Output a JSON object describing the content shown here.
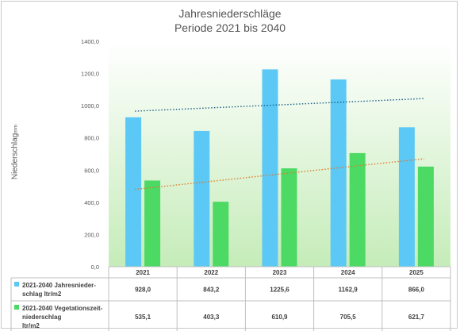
{
  "chart_data": {
    "type": "bar",
    "title": "Jahresniederschläge",
    "subtitle": "Periode 2021 bis 2040",
    "ylabel": "Niederschlag",
    "ylabel_unit": "mm",
    "ylim": [
      0,
      1400
    ],
    "yticks": [
      "0,0",
      "200,0",
      "400,0",
      "600,0",
      "800,0",
      "1000,0",
      "1200,0",
      "1400,0"
    ],
    "categories": [
      "2021",
      "2022",
      "2023",
      "2024",
      "2025"
    ],
    "series": [
      {
        "name": "2021-2040 Jahresnieder-schlag ltr/m2",
        "label_lines": [
          "2021-2040 Jahresnieder-",
          "schlag ltr/m2"
        ],
        "values": [
          928.0,
          843.2,
          1225.6,
          1162.9,
          866.0
        ],
        "labels": [
          "928,0",
          "843,2",
          "1225,6",
          "1162,9",
          "866,0"
        ],
        "color": "#5bc8f5",
        "trendline": true,
        "trend_color": "#1f5f8a"
      },
      {
        "name": "2021-2040 Vegetationszeit-niederschlag ltr/m2",
        "label_lines": [
          "2021-2040 Vegetationszeit-",
          "niederschlag",
          "ltr/m2"
        ],
        "values": [
          535.1,
          403.3,
          610.9,
          705.5,
          621.7
        ],
        "labels": [
          "535,1",
          "403,3",
          "610,9",
          "705,5",
          "621,7"
        ],
        "color": "#4cd964",
        "trendline": true,
        "trend_color": "#e07a2a"
      }
    ],
    "grid": false,
    "legend": "data-table"
  }
}
